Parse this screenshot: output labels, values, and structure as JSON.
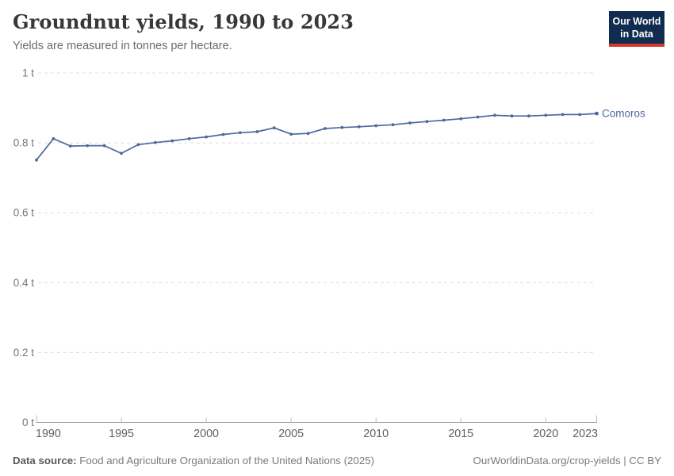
{
  "header": {
    "title": "Groundnut yields, 1990 to 2023",
    "subtitle": "Yields are measured in tonnes per hectare.",
    "logo_line1": "Our World",
    "logo_line2": "in Data",
    "logo_bg_color": "#102C50",
    "logo_bar_color": "#D3392D"
  },
  "footer": {
    "source_label": "Data source:",
    "source_text": " Food and Agriculture Organization of the United Nations (2025)",
    "credit": "OurWorldinData.org/crop-yields | CC BY"
  },
  "chart_data": {
    "type": "line",
    "title": "Groundnut yields, 1990 to 2023",
    "subtitle": "Yields are measured in tonnes per hectare.",
    "ylabel": "tonnes per hectare",
    "xlabel": "",
    "xlim": [
      1990,
      2023
    ],
    "ylim": [
      0,
      1
    ],
    "grid": "dashed-horizontal",
    "legend_position": "end-of-line",
    "x": [
      1990,
      1991,
      1992,
      1993,
      1994,
      1995,
      1996,
      1997,
      1998,
      1999,
      2000,
      2001,
      2002,
      2003,
      2004,
      2005,
      2006,
      2007,
      2008,
      2009,
      2010,
      2011,
      2012,
      2013,
      2014,
      2015,
      2016,
      2017,
      2018,
      2019,
      2020,
      2021,
      2022,
      2023
    ],
    "series": [
      {
        "name": "Comoros",
        "color": "#4C6A9C",
        "values": [
          0.751,
          0.812,
          0.791,
          0.792,
          0.792,
          0.77,
          0.795,
          0.801,
          0.806,
          0.812,
          0.817,
          0.824,
          0.829,
          0.832,
          0.843,
          0.825,
          0.827,
          0.841,
          0.844,
          0.846,
          0.849,
          0.852,
          0.857,
          0.861,
          0.865,
          0.869,
          0.874,
          0.879,
          0.877,
          0.877,
          0.879,
          0.881,
          0.881,
          0.884
        ]
      }
    ],
    "yticks": [
      {
        "value": 0,
        "label": "0 t"
      },
      {
        "value": 0.2,
        "label": "0.2 t"
      },
      {
        "value": 0.4,
        "label": "0.4 t"
      },
      {
        "value": 0.6,
        "label": "0.6 t"
      },
      {
        "value": 0.8,
        "label": "0.8 t"
      },
      {
        "value": 1,
        "label": "1 t"
      }
    ],
    "xticks": [
      {
        "value": 1990,
        "label": "1990"
      },
      {
        "value": 1995,
        "label": "1995"
      },
      {
        "value": 2000,
        "label": "2000"
      },
      {
        "value": 2005,
        "label": "2005"
      },
      {
        "value": 2010,
        "label": "2010"
      },
      {
        "value": 2015,
        "label": "2015"
      },
      {
        "value": 2020,
        "label": "2020"
      },
      {
        "value": 2023,
        "label": "2023"
      }
    ]
  }
}
